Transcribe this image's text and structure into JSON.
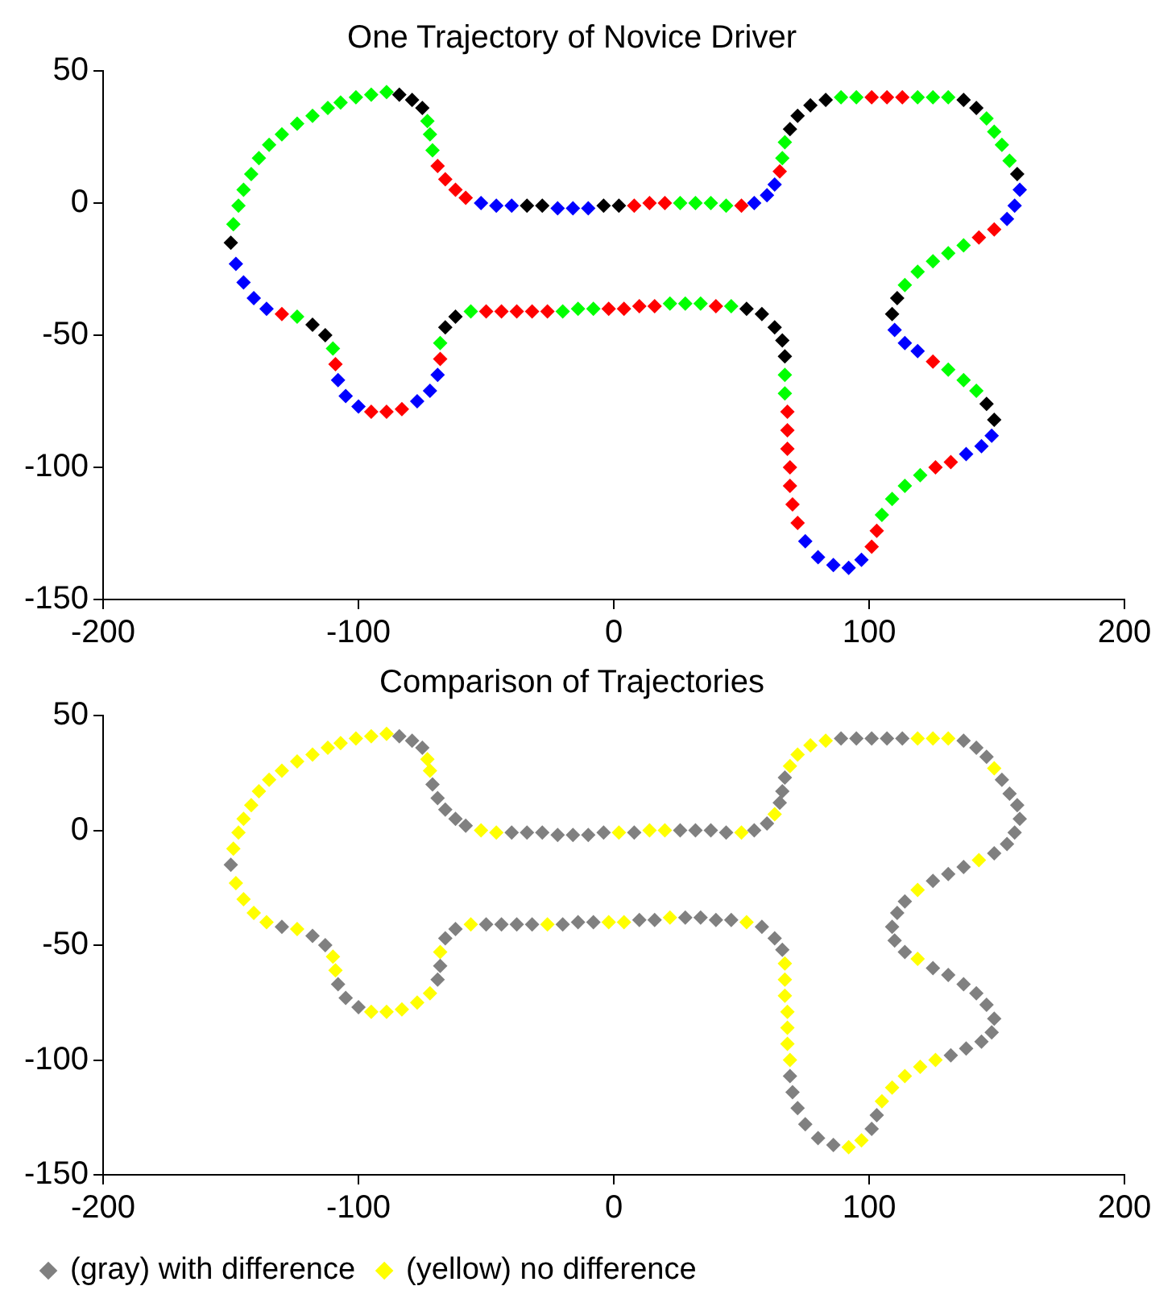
{
  "chart_data": [
    {
      "type": "scatter",
      "title": "One Trajectory of Novice Driver",
      "xlim": [
        -200,
        200
      ],
      "xticks": [
        -200,
        -100,
        0,
        100,
        200
      ],
      "ylim": [
        -150,
        50
      ],
      "yticks": [
        -150,
        -100,
        -50,
        0,
        50
      ],
      "marker": "diamond",
      "legend": false,
      "series": [
        {
          "color": "#00ff00",
          "x": [
            -149,
            -147,
            -145,
            -142,
            -139,
            -135,
            -130,
            -124,
            -118,
            -112,
            -107,
            -101,
            -95,
            -89,
            -73,
            -72,
            -71,
            26,
            32,
            38,
            44,
            66,
            67,
            89,
            95,
            119,
            125,
            131,
            146,
            149,
            152,
            155,
            137,
            131,
            125,
            119,
            114,
            131,
            137,
            142,
            120,
            114,
            109,
            105,
            67,
            67,
            46,
            34,
            28,
            22,
            -8,
            -14,
            -20,
            -56,
            -68,
            -110,
            -124
          ],
          "values": [
            -8,
            -1,
            5,
            11,
            17,
            22,
            26,
            30,
            33,
            36,
            38,
            40,
            41,
            42,
            31,
            26,
            20,
            0,
            0,
            0,
            -1,
            17,
            23,
            40,
            40,
            40,
            40,
            40,
            32,
            27,
            22,
            16,
            -16,
            -19,
            -22,
            -26,
            -31,
            -63,
            -67,
            -71,
            -103,
            -107,
            -112,
            -118,
            -72,
            -65,
            -39,
            -38,
            -38,
            -38,
            -40,
            -40,
            -41,
            -41,
            -53,
            -55,
            -43
          ]
        },
        {
          "color": "#000000",
          "x": [
            -150,
            -84,
            -79,
            -75,
            -34,
            -28,
            -4,
            2,
            69,
            72,
            77,
            83,
            137,
            142,
            158,
            111,
            109,
            146,
            149,
            67,
            66,
            63,
            58,
            52,
            -62,
            -66,
            -113,
            -118
          ],
          "values": [
            -15,
            41,
            39,
            36,
            -1,
            -1,
            -1,
            -1,
            28,
            33,
            37,
            39,
            39,
            36,
            11,
            -36,
            -42,
            -76,
            -82,
            -58,
            -52,
            -47,
            -42,
            -40,
            -43,
            -47,
            -50,
            -46
          ]
        },
        {
          "color": "#ff0000",
          "x": [
            -69,
            -66,
            -62,
            -58,
            8,
            14,
            20,
            50,
            65,
            101,
            107,
            113,
            149,
            143,
            125,
            132,
            126,
            103,
            101,
            72,
            70,
            69,
            69,
            68,
            68,
            68,
            40,
            16,
            10,
            4,
            -2,
            -26,
            -32,
            -38,
            -44,
            -50,
            -68,
            -83,
            -89,
            -95,
            -109,
            -130
          ],
          "values": [
            14,
            9,
            5,
            2,
            -1,
            0,
            0,
            -1,
            12,
            40,
            40,
            40,
            -10,
            -13,
            -60,
            -98,
            -100,
            -124,
            -130,
            -121,
            -114,
            -107,
            -100,
            -93,
            -86,
            -79,
            -39,
            -39,
            -39,
            -40,
            -40,
            -41,
            -41,
            -41,
            -41,
            -41,
            -59,
            -78,
            -79,
            -79,
            -61,
            -42
          ]
        },
        {
          "color": "#0000ff",
          "x": [
            -52,
            -46,
            -40,
            -22,
            -16,
            -10,
            55,
            60,
            63,
            159,
            157,
            154,
            110,
            114,
            119,
            148,
            144,
            138,
            97,
            92,
            86,
            80,
            75,
            -69,
            -72,
            -77,
            -100,
            -105,
            -108,
            -136,
            -141,
            -145,
            -148
          ],
          "values": [
            0,
            -1,
            -1,
            -2,
            -2,
            -2,
            0,
            3,
            7,
            5,
            -1,
            -6,
            -48,
            -53,
            -56,
            -88,
            -92,
            -95,
            -135,
            -138,
            -137,
            -134,
            -128,
            -65,
            -71,
            -75,
            -77,
            -73,
            -67,
            -40,
            -36,
            -30,
            -23
          ]
        }
      ]
    },
    {
      "type": "scatter",
      "title": "Comparison of Trajectories",
      "xlim": [
        -200,
        200
      ],
      "xticks": [
        -200,
        -100,
        0,
        100,
        200
      ],
      "ylim": [
        -150,
        50
      ],
      "yticks": [
        -150,
        -100,
        -50,
        0,
        50
      ],
      "marker": "diamond",
      "legend": "bottom left",
      "series": [
        {
          "name": "(gray) with difference",
          "color": "#808080",
          "x": [
            -150,
            -84,
            -79,
            -75,
            -71,
            -69,
            -66,
            -62,
            -58,
            -40,
            -34,
            -28,
            -22,
            -16,
            -10,
            -4,
            8,
            26,
            32,
            38,
            44,
            55,
            60,
            65,
            66,
            67,
            89,
            95,
            101,
            107,
            113,
            137,
            142,
            146,
            152,
            155,
            158,
            159,
            157,
            154,
            149,
            137,
            131,
            125,
            114,
            111,
            109,
            110,
            114,
            125,
            131,
            137,
            142,
            146,
            149,
            148,
            144,
            138,
            132,
            103,
            101,
            86,
            80,
            75,
            72,
            70,
            69,
            66,
            63,
            58,
            46,
            40,
            34,
            28,
            16,
            10,
            -8,
            -14,
            -20,
            -32,
            -38,
            -44,
            -50,
            -62,
            -66,
            -68,
            -69,
            -100,
            -105,
            -108,
            -113,
            -118,
            -130
          ],
          "values": [
            -15,
            41,
            39,
            36,
            20,
            14,
            9,
            5,
            2,
            -1,
            -1,
            -1,
            -2,
            -2,
            -2,
            -1,
            -1,
            0,
            0,
            0,
            -1,
            0,
            3,
            12,
            17,
            23,
            40,
            40,
            40,
            40,
            40,
            39,
            36,
            32,
            22,
            16,
            11,
            5,
            -1,
            -6,
            -10,
            -16,
            -19,
            -22,
            -31,
            -36,
            -42,
            -48,
            -53,
            -60,
            -63,
            -67,
            -71,
            -76,
            -82,
            -88,
            -92,
            -95,
            -98,
            -124,
            -130,
            -137,
            -134,
            -128,
            -121,
            -114,
            -107,
            -52,
            -47,
            -42,
            -39,
            -39,
            -38,
            -38,
            -39,
            -39,
            -40,
            -40,
            -41,
            -41,
            -41,
            -41,
            -41,
            -43,
            -47,
            -59,
            -65,
            -77,
            -73,
            -67,
            -50,
            -46,
            -42
          ]
        },
        {
          "name": "(yellow) no difference",
          "color": "#ffff00",
          "x": [
            -149,
            -147,
            -145,
            -142,
            -139,
            -135,
            -130,
            -124,
            -118,
            -112,
            -107,
            -101,
            -95,
            -89,
            -73,
            -72,
            -52,
            -46,
            2,
            14,
            20,
            50,
            63,
            69,
            72,
            77,
            83,
            119,
            125,
            131,
            149,
            143,
            119,
            119,
            126,
            120,
            114,
            109,
            105,
            97,
            92,
            69,
            68,
            68,
            68,
            67,
            67,
            67,
            52,
            22,
            4,
            -2,
            -26,
            -56,
            -68,
            -72,
            -77,
            -83,
            -89,
            -95,
            -109,
            -110,
            -124,
            -136,
            -141,
            -145,
            -148
          ],
          "values": [
            -8,
            -1,
            5,
            11,
            17,
            22,
            26,
            30,
            33,
            36,
            38,
            40,
            41,
            42,
            31,
            26,
            0,
            -1,
            -1,
            0,
            0,
            -1,
            7,
            28,
            33,
            37,
            39,
            40,
            40,
            40,
            27,
            -13,
            -26,
            -56,
            -100,
            -103,
            -107,
            -112,
            -118,
            -135,
            -138,
            -100,
            -93,
            -86,
            -79,
            -72,
            -65,
            -58,
            -40,
            -38,
            -40,
            -40,
            -41,
            -41,
            -53,
            -71,
            -75,
            -78,
            -79,
            -79,
            -61,
            -55,
            -43,
            -40,
            -36,
            -30,
            -23
          ]
        }
      ]
    }
  ]
}
